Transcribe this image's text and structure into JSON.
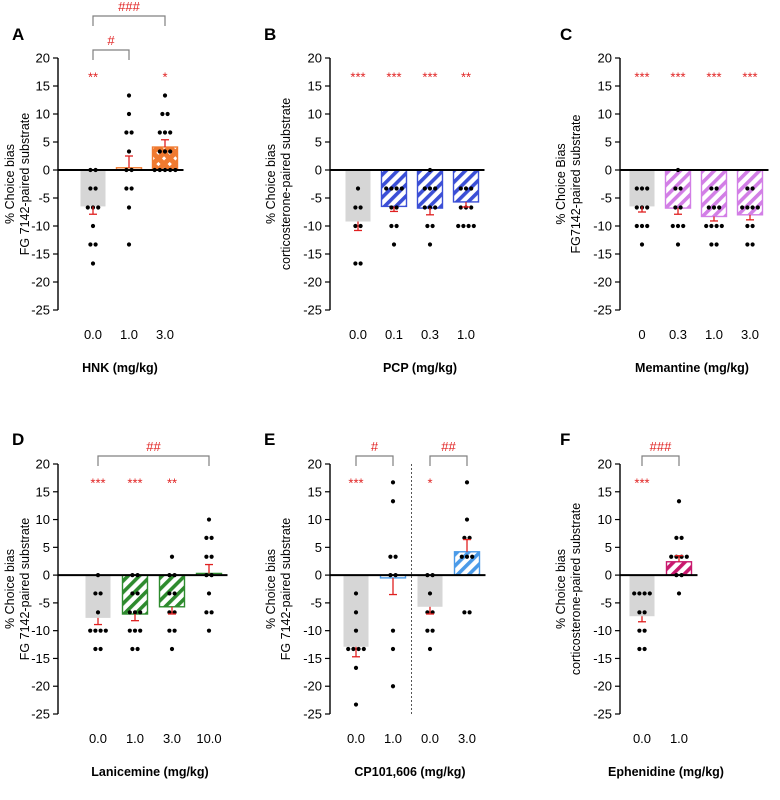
{
  "colors": {
    "control_bar": "#d6d6d6",
    "sig": "#e02020",
    "err": "#e02020",
    "bracket": "#808080",
    "axis": "#000000",
    "dot": "#000000",
    "ketamine_orange": "#f07a30",
    "pcp_blue": "#3b4fd6",
    "memantine_violet": "#d27ee6",
    "lanicemine_green": "#2e8b2e",
    "cp_blue": "#4a9ae8",
    "ephenidine_pink": "#c8196e"
  },
  "chart_data": [
    {
      "panel": "A",
      "type": "bar",
      "ylabel_lines": [
        "% Choice bias",
        "FG 7142-paired substrate"
      ],
      "xlabel": "HNK (mg/kg)",
      "ylim": [
        -25,
        20
      ],
      "yticks": [
        20,
        15,
        10,
        5,
        0,
        -5,
        -10,
        -15,
        -20,
        -25
      ],
      "categories": [
        "0.0",
        "1.0",
        "3.0"
      ],
      "values": [
        -6.5,
        0.4,
        4.1
      ],
      "sem": [
        1.4,
        2.1,
        1.3
      ],
      "patterns": [
        "control",
        "none",
        "crosshatch"
      ],
      "pattern_color": "ketamine_orange",
      "significance": [
        "**",
        "",
        "*"
      ],
      "brackets": [
        {
          "from": 0,
          "to": 1,
          "label": "#",
          "level": 1
        },
        {
          "from": 0,
          "to": 2,
          "label": "###",
          "level": 2
        }
      ],
      "points": [
        [
          0,
          0,
          -3.3,
          -3.3,
          -6.7,
          -6.7,
          -6.7,
          -10,
          -13.3,
          -13.3,
          -16.7
        ],
        [
          13.3,
          10,
          6.7,
          6.7,
          3.3,
          0,
          0,
          -3.3,
          -3.3,
          -6.7,
          -13.3
        ],
        [
          13.3,
          10,
          10,
          6.7,
          6.7,
          6.7,
          3.3,
          3.3,
          3.3,
          0,
          0,
          0,
          0,
          0
        ]
      ]
    },
    {
      "panel": "B",
      "type": "bar",
      "ylabel_lines": [
        "% Choice bias",
        "corticosterone-paired substrate"
      ],
      "xlabel": "PCP (mg/kg)",
      "ylim": [
        -25,
        20
      ],
      "yticks": [
        20,
        15,
        10,
        5,
        0,
        -5,
        -10,
        -15,
        -20,
        -25
      ],
      "categories": [
        "0.0",
        "0.1",
        "0.3",
        "1.0"
      ],
      "values": [
        -9.2,
        -6.5,
        -6.8,
        -5.7
      ],
      "sem": [
        1.6,
        0.9,
        1.2,
        0.9
      ],
      "patterns": [
        "control",
        "diag",
        "diag",
        "diag"
      ],
      "pattern_color": "pcp_blue",
      "significance": [
        "***",
        "***",
        "***",
        "**"
      ],
      "brackets": [],
      "points": [
        [
          -3.3,
          -6.7,
          -6.7,
          -10,
          -10,
          -16.7,
          -16.7
        ],
        [
          -3.3,
          -3.3,
          -3.3,
          -3.3,
          -6.7,
          -6.7,
          -10,
          -10,
          -13.3
        ],
        [
          0,
          -3.3,
          -3.3,
          -3.3,
          -6.7,
          -6.7,
          -6.7,
          -10,
          -10,
          -13.3
        ],
        [
          -3.3,
          -3.3,
          -3.3,
          -6.7,
          -6.7,
          -6.7,
          -10,
          -10,
          -10,
          -10
        ]
      ]
    },
    {
      "panel": "C",
      "type": "bar",
      "ylabel_lines": [
        "% Choice Bias",
        "FG7142-paired substrate"
      ],
      "xlabel": "Memantine (mg/kg)",
      "ylim": [
        -25,
        20
      ],
      "yticks": [
        20,
        15,
        10,
        5,
        0,
        -5,
        -10,
        -15,
        -20,
        -25
      ],
      "categories": [
        "0",
        "0.3",
        "1.0",
        "3.0"
      ],
      "values": [
        -6.5,
        -6.8,
        -8.3,
        -8.0
      ],
      "sem": [
        1.0,
        1.1,
        0.8,
        0.9
      ],
      "patterns": [
        "control",
        "diag",
        "diag",
        "diag"
      ],
      "pattern_color": "memantine_violet",
      "significance": [
        "***",
        "***",
        "***",
        "***"
      ],
      "brackets": [],
      "points": [
        [
          -3.3,
          -3.3,
          -3.3,
          -6.7,
          -6.7,
          -6.7,
          -10,
          -10,
          -10,
          -13.3
        ],
        [
          0,
          -3.3,
          -3.3,
          -6.7,
          -6.7,
          -10,
          -10,
          -10,
          -13.3
        ],
        [
          -3.3,
          -3.3,
          -6.7,
          -6.7,
          -6.7,
          -10,
          -10,
          -10,
          -10,
          -13.3,
          -13.3
        ],
        [
          -3.3,
          -3.3,
          -6.7,
          -6.7,
          -6.7,
          -6.7,
          -10,
          -10,
          -13.3,
          -13.3
        ]
      ]
    },
    {
      "panel": "D",
      "type": "bar",
      "ylabel_lines": [
        "% Choice bias",
        "FG 7142-paired substrate"
      ],
      "xlabel": "Lanicemine (mg/kg)",
      "ylim": [
        -25,
        20
      ],
      "yticks": [
        20,
        15,
        10,
        5,
        0,
        -5,
        -10,
        -15,
        -20,
        -25
      ],
      "categories": [
        "0.0",
        "1.0",
        "3.0",
        "10.0"
      ],
      "values": [
        -7.7,
        -7.0,
        -5.7,
        0.3
      ],
      "sem": [
        1.2,
        1.2,
        1.3,
        1.6
      ],
      "patterns": [
        "control",
        "diag",
        "diag",
        "none"
      ],
      "pattern_color": "lanicemine_green",
      "significance": [
        "***",
        "***",
        "**",
        ""
      ],
      "brackets": [
        {
          "from": 0,
          "to": 3,
          "label": "##",
          "level": 1
        }
      ],
      "points": [
        [
          0,
          -3.3,
          -3.3,
          -6.7,
          -10,
          -10,
          -10,
          -10,
          -13.3,
          -13.3
        ],
        [
          0,
          0,
          -3.3,
          -3.3,
          -6.7,
          -6.7,
          -6.7,
          -10,
          -10,
          -10,
          -13.3,
          -13.3
        ],
        [
          3.3,
          0,
          0,
          -3.3,
          -3.3,
          -6.7,
          -6.7,
          -10,
          -10,
          -13.3
        ],
        [
          10,
          6.7,
          6.7,
          3.3,
          3.3,
          0,
          0,
          -3.3,
          -6.7,
          -6.7,
          -10
        ]
      ]
    },
    {
      "panel": "E",
      "type": "bar",
      "ylabel_lines": [
        "% Choice bias",
        "FG 7142-paired substrate"
      ],
      "xlabel": "CP101,606 (mg/kg)",
      "ylim": [
        -25,
        20
      ],
      "yticks": [
        20,
        15,
        10,
        5,
        0,
        -5,
        -10,
        -15,
        -20,
        -25
      ],
      "categories": [
        "0.0",
        "1.0",
        "0.0",
        "3.0"
      ],
      "values": [
        -12.9,
        -0.5,
        -5.7,
        4.2
      ],
      "sem": [
        1.8,
        3.0,
        1.3,
        2.2
      ],
      "patterns": [
        "control",
        "none",
        "control",
        "diag"
      ],
      "pattern_color": "cp_blue",
      "significance": [
        "***",
        "",
        "*",
        ""
      ],
      "brackets": [
        {
          "from": 0,
          "to": 1,
          "label": "#",
          "level": 1
        },
        {
          "from": 2,
          "to": 3,
          "label": "##",
          "level": 1
        }
      ],
      "separator_after": 1,
      "points": [
        [
          -3.3,
          -6.7,
          -10,
          -13.3,
          -13.3,
          -13.3,
          -13.3,
          -16.7,
          -23.3
        ],
        [
          16.7,
          13.3,
          3.3,
          3.3,
          0,
          0,
          -10,
          -13.3,
          -20
        ],
        [
          0,
          0,
          -3.3,
          -6.7,
          -6.7,
          -10,
          -10,
          -13.3
        ],
        [
          16.7,
          10,
          6.7,
          6.7,
          3.3,
          3.3,
          3.3,
          -6.7,
          -6.7
        ]
      ]
    },
    {
      "panel": "F",
      "type": "bar",
      "ylabel_lines": [
        "% Choice bias",
        "corticosterone-paired substrate"
      ],
      "xlabel": "Ephenidine (mg/kg)",
      "ylim": [
        -25,
        20
      ],
      "yticks": [
        20,
        15,
        10,
        5,
        0,
        -5,
        -10,
        -15,
        -20,
        -25
      ],
      "categories": [
        "0.0",
        "1.0"
      ],
      "values": [
        -7.4,
        2.4
      ],
      "sem": [
        1.0,
        1.1
      ],
      "patterns": [
        "control",
        "diag"
      ],
      "pattern_color": "ephenidine_pink",
      "significance": [
        "***",
        ""
      ],
      "brackets": [
        {
          "from": 0,
          "to": 1,
          "label": "###",
          "level": 1
        }
      ],
      "points": [
        [
          -3.3,
          -3.3,
          -3.3,
          -3.3,
          -6.7,
          -6.7,
          -10,
          -10,
          -13.3,
          -13.3
        ],
        [
          13.3,
          6.7,
          6.7,
          3.3,
          3.3,
          3.3,
          3.3,
          0,
          0,
          -3.3
        ]
      ]
    }
  ]
}
